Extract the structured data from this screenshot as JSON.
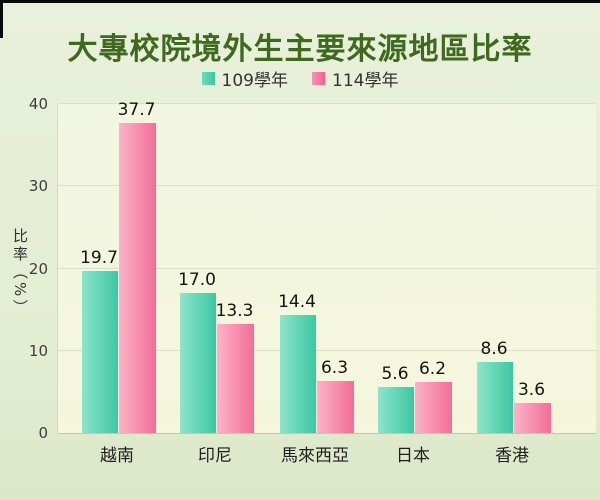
{
  "title": "大專校院境外生主要來源地區比率",
  "legend": {
    "items": [
      {
        "label": "109學年",
        "color": "#49cda9"
      },
      {
        "label": "114學年",
        "color": "#f2618e"
      }
    ]
  },
  "y_axis": {
    "title": "比率（%）",
    "tick_labels": [
      "0",
      "10",
      "20",
      "30",
      "40"
    ]
  },
  "chart_data": {
    "type": "bar",
    "title": "大專校院境外生主要來源地區比率",
    "xlabel": "",
    "ylabel": "比率（%）",
    "ylim": [
      0,
      40
    ],
    "yticks": [
      0,
      10,
      20,
      30,
      40
    ],
    "grid": true,
    "legend_position": "top-center",
    "categories": [
      "越南",
      "印尼",
      "馬來西亞",
      "日本",
      "香港"
    ],
    "series": [
      {
        "name": "109學年",
        "values": [
          19.7,
          17.0,
          14.4,
          5.6,
          8.6
        ],
        "value_labels": [
          "19.7",
          "17.0",
          "14.4",
          "5.6",
          "8.6"
        ],
        "gradient_start": "#8de5cb",
        "gradient_end": "#3dc7a3"
      },
      {
        "name": "114學年",
        "values": [
          37.7,
          13.3,
          6.3,
          6.2,
          3.6
        ],
        "value_labels": [
          "37.7",
          "13.3",
          "6.3",
          "6.2",
          "3.6"
        ],
        "gradient_start": "#fbb4c9",
        "gradient_end": "#f26d97"
      }
    ]
  },
  "colors": {
    "page_background": "#e4eed4",
    "plot_background": "#f4f6e2",
    "title_text": "#3e691e",
    "gridline": "#d9e0c9",
    "axis_line": "#c2c9b2",
    "tick_text": "#3d3d3d",
    "value_text": "#141414",
    "edge_strip": "#0a0a0a"
  }
}
